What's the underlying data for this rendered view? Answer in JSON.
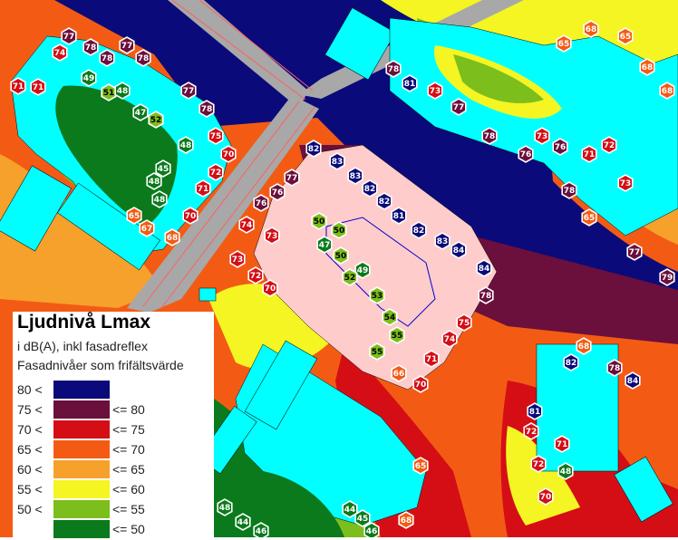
{
  "legend": {
    "title": "Ljudnivå Lmax",
    "subtitle1": "i dB(A), inkl fasadreflex",
    "subtitle2": "Fasadnivåer som frifältsvärde",
    "rows": [
      {
        "low": "80 <",
        "high": "",
        "color": "#0a0a7a"
      },
      {
        "low": "75 <",
        "high": "<= 80",
        "color": "#6b0f3c"
      },
      {
        "low": "70 <",
        "high": "<= 75",
        "color": "#d50e16"
      },
      {
        "low": "65 <",
        "high": "<= 70",
        "color": "#f35b14"
      },
      {
        "low": "60 <",
        "high": "<= 65",
        "color": "#f6a12b"
      },
      {
        "low": "55 <",
        "high": "<= 60",
        "color": "#f4f522"
      },
      {
        "low": "50 <",
        "high": "<= 55",
        "color": "#7cbe1c"
      },
      {
        "low": "",
        "high": "<= 50",
        "color": "#0b7a1c"
      }
    ]
  },
  "facade_points": [
    {
      "v": "77",
      "c": "#6b0f3c"
    },
    {
      "v": "78",
      "c": "#6b0f3c"
    },
    {
      "v": "78",
      "c": "#6b0f3c"
    },
    {
      "v": "77",
      "c": "#6b0f3c"
    },
    {
      "v": "74",
      "c": "#d50e16"
    },
    {
      "v": "78",
      "c": "#6b0f3c"
    },
    {
      "v": "71",
      "c": "#d50e16"
    },
    {
      "v": "71",
      "c": "#d50e16"
    },
    {
      "v": "49",
      "c": "#0b7a1c"
    },
    {
      "v": "51",
      "c": "#7cbe1c"
    },
    {
      "v": "48",
      "c": "#0b7a1c"
    },
    {
      "v": "77",
      "c": "#6b0f3c"
    },
    {
      "v": "47",
      "c": "#0b7a1c"
    },
    {
      "v": "52",
      "c": "#7cbe1c"
    },
    {
      "v": "78",
      "c": "#6b0f3c"
    },
    {
      "v": "75",
      "c": "#d50e16"
    },
    {
      "v": "48",
      "c": "#0b7a1c"
    },
    {
      "v": "70",
      "c": "#d50e16"
    },
    {
      "v": "48",
      "c": "#0b7a1c"
    },
    {
      "v": "72",
      "c": "#d50e16"
    },
    {
      "v": "48",
      "c": "#0b7a1c"
    },
    {
      "v": "71",
      "c": "#d50e16"
    },
    {
      "v": "45",
      "c": "#0b7a1c"
    },
    {
      "v": "70",
      "c": "#d50e16"
    },
    {
      "v": "68",
      "c": "#f35b14"
    },
    {
      "v": "67",
      "c": "#f35b14"
    },
    {
      "v": "65",
      "c": "#f35b14"
    },
    {
      "v": "82",
      "c": "#0a0a7a"
    },
    {
      "v": "83",
      "c": "#0a0a7a"
    },
    {
      "v": "83",
      "c": "#0a0a7a"
    },
    {
      "v": "82",
      "c": "#0a0a7a"
    },
    {
      "v": "82",
      "c": "#0a0a7a"
    },
    {
      "v": "81",
      "c": "#0a0a7a"
    },
    {
      "v": "82",
      "c": "#0a0a7a"
    },
    {
      "v": "83",
      "c": "#0a0a7a"
    },
    {
      "v": "84",
      "c": "#0a0a7a"
    },
    {
      "v": "84",
      "c": "#0a0a7a"
    },
    {
      "v": "78",
      "c": "#6b0f3c"
    },
    {
      "v": "77",
      "c": "#6b0f3c"
    },
    {
      "v": "76",
      "c": "#6b0f3c"
    },
    {
      "v": "75",
      "c": "#d50e16"
    },
    {
      "v": "74",
      "c": "#d50e16"
    },
    {
      "v": "71",
      "c": "#d50e16"
    },
    {
      "v": "70",
      "c": "#d50e16"
    },
    {
      "v": "66",
      "c": "#f35b14"
    },
    {
      "v": "76",
      "c": "#6b0f3c"
    },
    {
      "v": "74",
      "c": "#d50e16"
    },
    {
      "v": "73",
      "c": "#d50e16"
    },
    {
      "v": "73",
      "c": "#d50e16"
    },
    {
      "v": "72",
      "c": "#d50e16"
    },
    {
      "v": "70",
      "c": "#d50e16"
    },
    {
      "v": "50",
      "c": "#7cbe1c"
    },
    {
      "v": "47",
      "c": "#0b7a1c"
    },
    {
      "v": "50",
      "c": "#7cbe1c"
    },
    {
      "v": "49",
      "c": "#0b7a1c"
    },
    {
      "v": "50",
      "c": "#7cbe1c"
    },
    {
      "v": "52",
      "c": "#7cbe1c"
    },
    {
      "v": "53",
      "c": "#7cbe1c"
    },
    {
      "v": "54",
      "c": "#7cbe1c"
    },
    {
      "v": "55",
      "c": "#7cbe1c"
    },
    {
      "v": "55",
      "c": "#7cbe1c"
    },
    {
      "v": "65",
      "c": "#f35b14"
    },
    {
      "v": "68",
      "c": "#f35b14"
    },
    {
      "v": "65",
      "c": "#f35b14"
    },
    {
      "v": "68",
      "c": "#f35b14"
    },
    {
      "v": "68",
      "c": "#f35b14"
    },
    {
      "v": "78",
      "c": "#6b0f3c"
    },
    {
      "v": "81",
      "c": "#0a0a7a"
    },
    {
      "v": "73",
      "c": "#d50e16"
    },
    {
      "v": "77",
      "c": "#6b0f3c"
    },
    {
      "v": "78",
      "c": "#6b0f3c"
    },
    {
      "v": "76",
      "c": "#6b0f3c"
    },
    {
      "v": "73",
      "c": "#d50e16"
    },
    {
      "v": "76",
      "c": "#6b0f3c"
    },
    {
      "v": "71",
      "c": "#d50e16"
    },
    {
      "v": "72",
      "c": "#d50e16"
    },
    {
      "v": "73",
      "c": "#d50e16"
    },
    {
      "v": "77",
      "c": "#6b0f3c"
    },
    {
      "v": "79",
      "c": "#6b0f3c"
    },
    {
      "v": "78",
      "c": "#6b0f3c"
    },
    {
      "v": "65",
      "c": "#f35b14"
    },
    {
      "v": "68",
      "c": "#f35b14"
    },
    {
      "v": "82",
      "c": "#0a0a7a"
    },
    {
      "v": "78",
      "c": "#6b0f3c"
    },
    {
      "v": "84",
      "c": "#0a0a7a"
    },
    {
      "v": "81",
      "c": "#0a0a7a"
    },
    {
      "v": "72",
      "c": "#d50e16"
    },
    {
      "v": "71",
      "c": "#d50e16"
    },
    {
      "v": "72",
      "c": "#d50e16"
    },
    {
      "v": "70",
      "c": "#d50e16"
    },
    {
      "v": "48",
      "c": "#0b7a1c"
    },
    {
      "v": "48",
      "c": "#0b7a1c"
    },
    {
      "v": "44",
      "c": "#0b7a1c"
    },
    {
      "v": "46",
      "c": "#0b7a1c"
    },
    {
      "v": "44",
      "c": "#0b7a1c"
    },
    {
      "v": "45",
      "c": "#0b7a1c"
    },
    {
      "v": "46",
      "c": "#0b7a1c"
    },
    {
      "v": "68",
      "c": "#f35b14"
    },
    {
      "v": "65",
      "c": "#f35b14"
    }
  ]
}
